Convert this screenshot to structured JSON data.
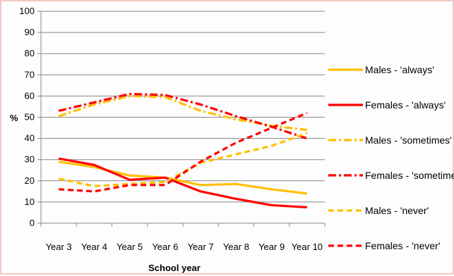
{
  "chart_data": {
    "type": "line",
    "title": "",
    "xlabel": "School year",
    "ylabel": "%",
    "ylim": [
      0,
      100
    ],
    "yticks": [
      0,
      10,
      20,
      30,
      40,
      50,
      60,
      70,
      80,
      90,
      100
    ],
    "grid": "horizontal",
    "legend_position": "right",
    "categories": [
      "Year 3",
      "Year 4",
      "Year 5",
      "Year 6",
      "Year 7",
      "Year 8",
      "Year 9",
      "Year 10"
    ],
    "series": [
      {
        "name": "Males - 'always'",
        "color": "#ffc000",
        "dash": "solid",
        "values": [
          29,
          26.5,
          22.5,
          21.5,
          18,
          18.5,
          16,
          14
        ]
      },
      {
        "name": "Females - 'always'",
        "color": "#ff0000",
        "dash": "solid",
        "values": [
          30.5,
          27.5,
          20.5,
          21.5,
          15,
          11.5,
          8.5,
          7.5
        ]
      },
      {
        "name": "Males - 'sometimes'",
        "color": "#ffc000",
        "dash": "dashdot",
        "values": [
          50.5,
          56,
          60,
          59.5,
          53,
          49,
          46,
          44
        ]
      },
      {
        "name": "Females - 'sometimes'",
        "color": "#ff0000",
        "dash": "dashdot",
        "values": [
          53,
          57,
          61,
          60.5,
          56,
          50.5,
          45.5,
          40
        ]
      },
      {
        "name": "Males - 'never'",
        "color": "#ffc000",
        "dash": "dash",
        "values": [
          21,
          17.5,
          18.5,
          19.5,
          28.5,
          32.5,
          36.5,
          42.5
        ]
      },
      {
        "name": "Females - 'never'",
        "color": "#ff0000",
        "dash": "dash",
        "values": [
          16,
          15,
          18,
          18,
          29,
          38,
          45,
          52
        ]
      }
    ]
  }
}
